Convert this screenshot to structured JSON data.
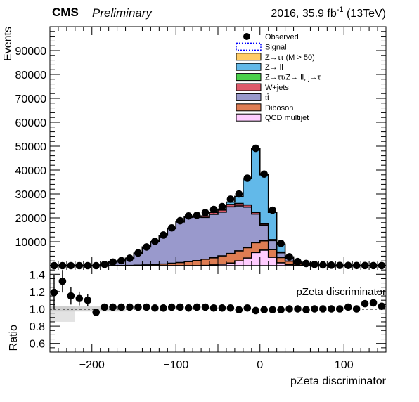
{
  "header": {
    "experiment": "CMS",
    "status": "Preliminary",
    "lumi_prefix": "2016, 35.9 fb",
    "lumi_exp": "-1",
    "lumi_suffix": " (13TeV)"
  },
  "chart_data": [
    {
      "type": "area",
      "stacked": true,
      "ylabel": "Events",
      "ylim": [
        0,
        100000
      ],
      "yticks_labeled": [
        10000,
        20000,
        30000,
        40000,
        50000,
        60000,
        70000,
        80000,
        90000
      ],
      "xlim": [
        -250,
        150
      ],
      "bin_width": 10,
      "bin_centers": [
        -245,
        -235,
        -225,
        -215,
        -205,
        -195,
        -185,
        -175,
        -165,
        -155,
        -145,
        -135,
        -125,
        -115,
        -105,
        -95,
        -85,
        -75,
        -65,
        -55,
        -45,
        -35,
        -25,
        -15,
        -5,
        5,
        15,
        25,
        35,
        45,
        55,
        65,
        75,
        85,
        95,
        105,
        115,
        125,
        135,
        145
      ],
      "series": [
        {
          "name": "QCD multijet",
          "color": "#ffccff",
          "values": [
            0,
            0,
            0,
            0,
            0,
            0,
            0,
            0,
            0,
            0,
            0,
            0,
            0,
            0,
            0,
            0,
            0,
            0,
            100,
            300,
            600,
            1100,
            2000,
            3200,
            5500,
            6500,
            3500,
            1200,
            500,
            200,
            100,
            0,
            0,
            0,
            0,
            0,
            0,
            0,
            0,
            0
          ]
        },
        {
          "name": "Diboson",
          "color": "#de7d53",
          "values": [
            0,
            0,
            0,
            0,
            0,
            0,
            0,
            0,
            50,
            100,
            200,
            300,
            500,
            700,
            1000,
            1300,
            1700,
            2100,
            2600,
            3000,
            3500,
            4000,
            4200,
            4300,
            4100,
            3900,
            3200,
            2200,
            1400,
            800,
            400,
            200,
            100,
            50,
            0,
            0,
            0,
            0,
            0,
            0
          ]
        },
        {
          "name": "tt̄",
          "color": "#9999cc",
          "values": [
            0,
            0,
            0,
            0,
            0,
            0,
            500,
            1500,
            2000,
            3000,
            5000,
            7500,
            9500,
            12000,
            14500,
            17000,
            18500,
            18200,
            17500,
            18200,
            18300,
            19500,
            18800,
            17000,
            12000,
            6500,
            3800,
            2000,
            1000,
            400,
            200,
            100,
            0,
            0,
            0,
            0,
            0,
            0,
            0,
            0
          ]
        },
        {
          "name": "W+jets",
          "color": "#de5a6a",
          "values": [
            0,
            0,
            0,
            0,
            0,
            0,
            0,
            0,
            0,
            0,
            0,
            0,
            0,
            0,
            200,
            300,
            400,
            500,
            600,
            800,
            900,
            1000,
            1000,
            900,
            700,
            500,
            400,
            300,
            200,
            100,
            100,
            0,
            0,
            0,
            0,
            0,
            0,
            0,
            0,
            0
          ]
        },
        {
          "name": "Z→ττ/Z→ ll, j→τ",
          "color": "#4ad04a",
          "values": [
            0,
            0,
            0,
            0,
            0,
            0,
            0,
            0,
            0,
            0,
            0,
            0,
            0,
            0,
            0,
            0,
            0,
            0,
            0,
            0,
            0,
            0,
            0,
            0,
            0,
            0,
            0,
            0,
            0,
            0,
            0,
            0,
            0,
            0,
            0,
            0,
            0,
            0,
            0,
            0
          ]
        },
        {
          "name": "Z→ ll",
          "color": "#62b9e9",
          "values": [
            0,
            0,
            0,
            0,
            0,
            0,
            0,
            0,
            0,
            0,
            0,
            0,
            0,
            0,
            0,
            0,
            0,
            0,
            0,
            0,
            400,
            1000,
            3000,
            11000,
            26800,
            20600,
            11400,
            3300,
            600,
            300,
            200,
            100,
            0,
            0,
            0,
            0,
            0,
            0,
            0,
            0
          ]
        },
        {
          "name": "Z→ττ (M > 50)",
          "color": "#ffcc66",
          "values": [
            0,
            0,
            0,
            0,
            0,
            0,
            0,
            0,
            0,
            0,
            0,
            0,
            0,
            0,
            0,
            0,
            0,
            0,
            0,
            0,
            0,
            0,
            0,
            0,
            0,
            0,
            0,
            0,
            0,
            0,
            0,
            0,
            0,
            0,
            0,
            0,
            0,
            0,
            0,
            0
          ]
        }
      ],
      "signal": {
        "name": "Signal",
        "color": "#0000ff",
        "style": "dashed",
        "values": [
          0,
          0,
          0,
          0,
          0,
          0,
          0,
          0,
          0,
          0,
          0,
          0,
          0,
          0,
          0,
          0,
          0,
          0,
          0,
          0,
          0,
          0,
          0,
          0,
          0,
          0,
          0,
          0,
          0,
          0,
          0,
          0,
          0,
          0,
          0,
          0,
          0,
          0,
          0,
          0
        ]
      },
      "observed": {
        "name": "Observed",
        "values": [
          0,
          0,
          0,
          0,
          0,
          0,
          500,
          1500,
          2100,
          3100,
          5300,
          7800,
          10200,
          12800,
          15800,
          18800,
          20800,
          21100,
          22200,
          23500,
          24700,
          27800,
          30000,
          36600,
          49100,
          38300,
          23200,
          9300,
          3700,
          1700,
          900,
          500,
          300,
          200,
          100,
          80,
          60,
          50,
          40,
          30
        ]
      },
      "legend_position": "top-right",
      "legend_order": [
        "Observed",
        "Signal",
        "Z→ττ (M > 50)",
        "Z→ ll",
        "Z→ττ/Z→ ll, j→τ",
        "W+jets",
        "tt̄",
        "Diboson",
        "QCD multijet"
      ]
    },
    {
      "type": "scatter",
      "ylabel": "Ratio",
      "xlabel": "pZeta discriminator",
      "panel_label": "pZeta discriminator",
      "ylim": [
        0.5,
        1.5
      ],
      "yticks_labeled": [
        0.6,
        0.8,
        1.0,
        1.2,
        1.4
      ],
      "xticks_labeled": [
        -200,
        -100,
        0,
        100
      ],
      "reference_line": 1.0,
      "x": [
        -245,
        -235,
        -225,
        -215,
        -205,
        -195,
        -185,
        -175,
        -165,
        -155,
        -145,
        -135,
        -125,
        -115,
        -105,
        -95,
        -85,
        -75,
        -65,
        -55,
        -45,
        -35,
        -25,
        -15,
        -5,
        5,
        15,
        25,
        35,
        45,
        55,
        65,
        75,
        85,
        95,
        105,
        115,
        125,
        135,
        145
      ],
      "y": [
        1.19,
        1.32,
        1.15,
        1.12,
        1.1,
        0.96,
        1.02,
        1.02,
        1.02,
        1.02,
        1.02,
        1.02,
        1.01,
        1.01,
        1.02,
        1.02,
        1.01,
        1.02,
        1.02,
        1.01,
        1.01,
        1.01,
        0.99,
        1.01,
        0.98,
        0.99,
        0.99,
        0.99,
        1.0,
        1.0,
        0.99,
        1.0,
        1.0,
        1.0,
        1.0,
        1.02,
        1.0,
        1.06,
        1.07,
        1.03
      ],
      "yerr": [
        0.2,
        0.13,
        0.1,
        0.08,
        0.07,
        0.03,
        0.02,
        0.015,
        0.01,
        0.01,
        0.01,
        0.01,
        0.01,
        0.01,
        0.01,
        0.01,
        0.01,
        0.01,
        0.01,
        0.01,
        0.01,
        0.01,
        0.01,
        0.01,
        0.01,
        0.01,
        0.01,
        0.01,
        0.01,
        0.01,
        0.01,
        0.02,
        0.02,
        0.03,
        0.03,
        0.03,
        0.03,
        0.03,
        0.03,
        0.03
      ],
      "uncertainty_band_until_x": -160
    }
  ]
}
